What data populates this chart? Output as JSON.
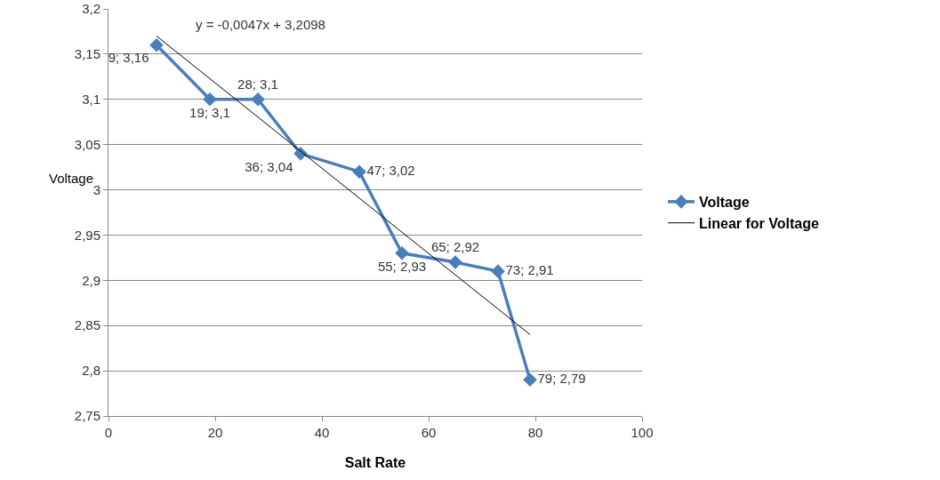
{
  "chart_data": {
    "type": "line",
    "xlabel": "Salt Rate",
    "ylabel": "Voltage",
    "xlim": [
      0,
      100
    ],
    "xticks": [
      0,
      20,
      40,
      60,
      80,
      100
    ],
    "ylim": [
      2.75,
      3.2
    ],
    "yticks": [
      {
        "value": 2.75,
        "label": "2,75"
      },
      {
        "value": 2.8,
        "label": "2,8"
      },
      {
        "value": 2.85,
        "label": "2,85"
      },
      {
        "value": 2.9,
        "label": "2,9"
      },
      {
        "value": 2.95,
        "label": "2,95"
      },
      {
        "value": 3,
        "label": "3"
      },
      {
        "value": 3.05,
        "label": "3,05"
      },
      {
        "value": 3.1,
        "label": "3,1"
      },
      {
        "value": 3.15,
        "label": "3,15"
      },
      {
        "value": 3.2,
        "label": "3,2"
      }
    ],
    "grid": "y",
    "legend": "right",
    "marker": "diamond",
    "line_style": "solid",
    "annotations": [
      "y = -0,0047x + 3,2098"
    ],
    "series": [
      {
        "name": "Voltage",
        "color": "#4a7ebb",
        "x": [
          9,
          19,
          28,
          36,
          47,
          55,
          65,
          73,
          79
        ],
        "values": [
          3.16,
          3.1,
          3.1,
          3.04,
          3.02,
          2.93,
          2.92,
          2.91,
          2.79
        ],
        "value_labels": [
          "9; 3,16",
          "19; 3,1",
          "28; 3,1",
          "36; 3,04",
          "47; 3,02",
          "55; 2,93",
          "65; 2,92",
          "73; 2,91",
          "79; 2,79"
        ]
      },
      {
        "name": "Linear for Voltage",
        "type": "line",
        "marker": "none",
        "color": "#000000",
        "x": [
          9,
          79
        ],
        "values": [
          3.17,
          2.84
        ]
      }
    ]
  }
}
